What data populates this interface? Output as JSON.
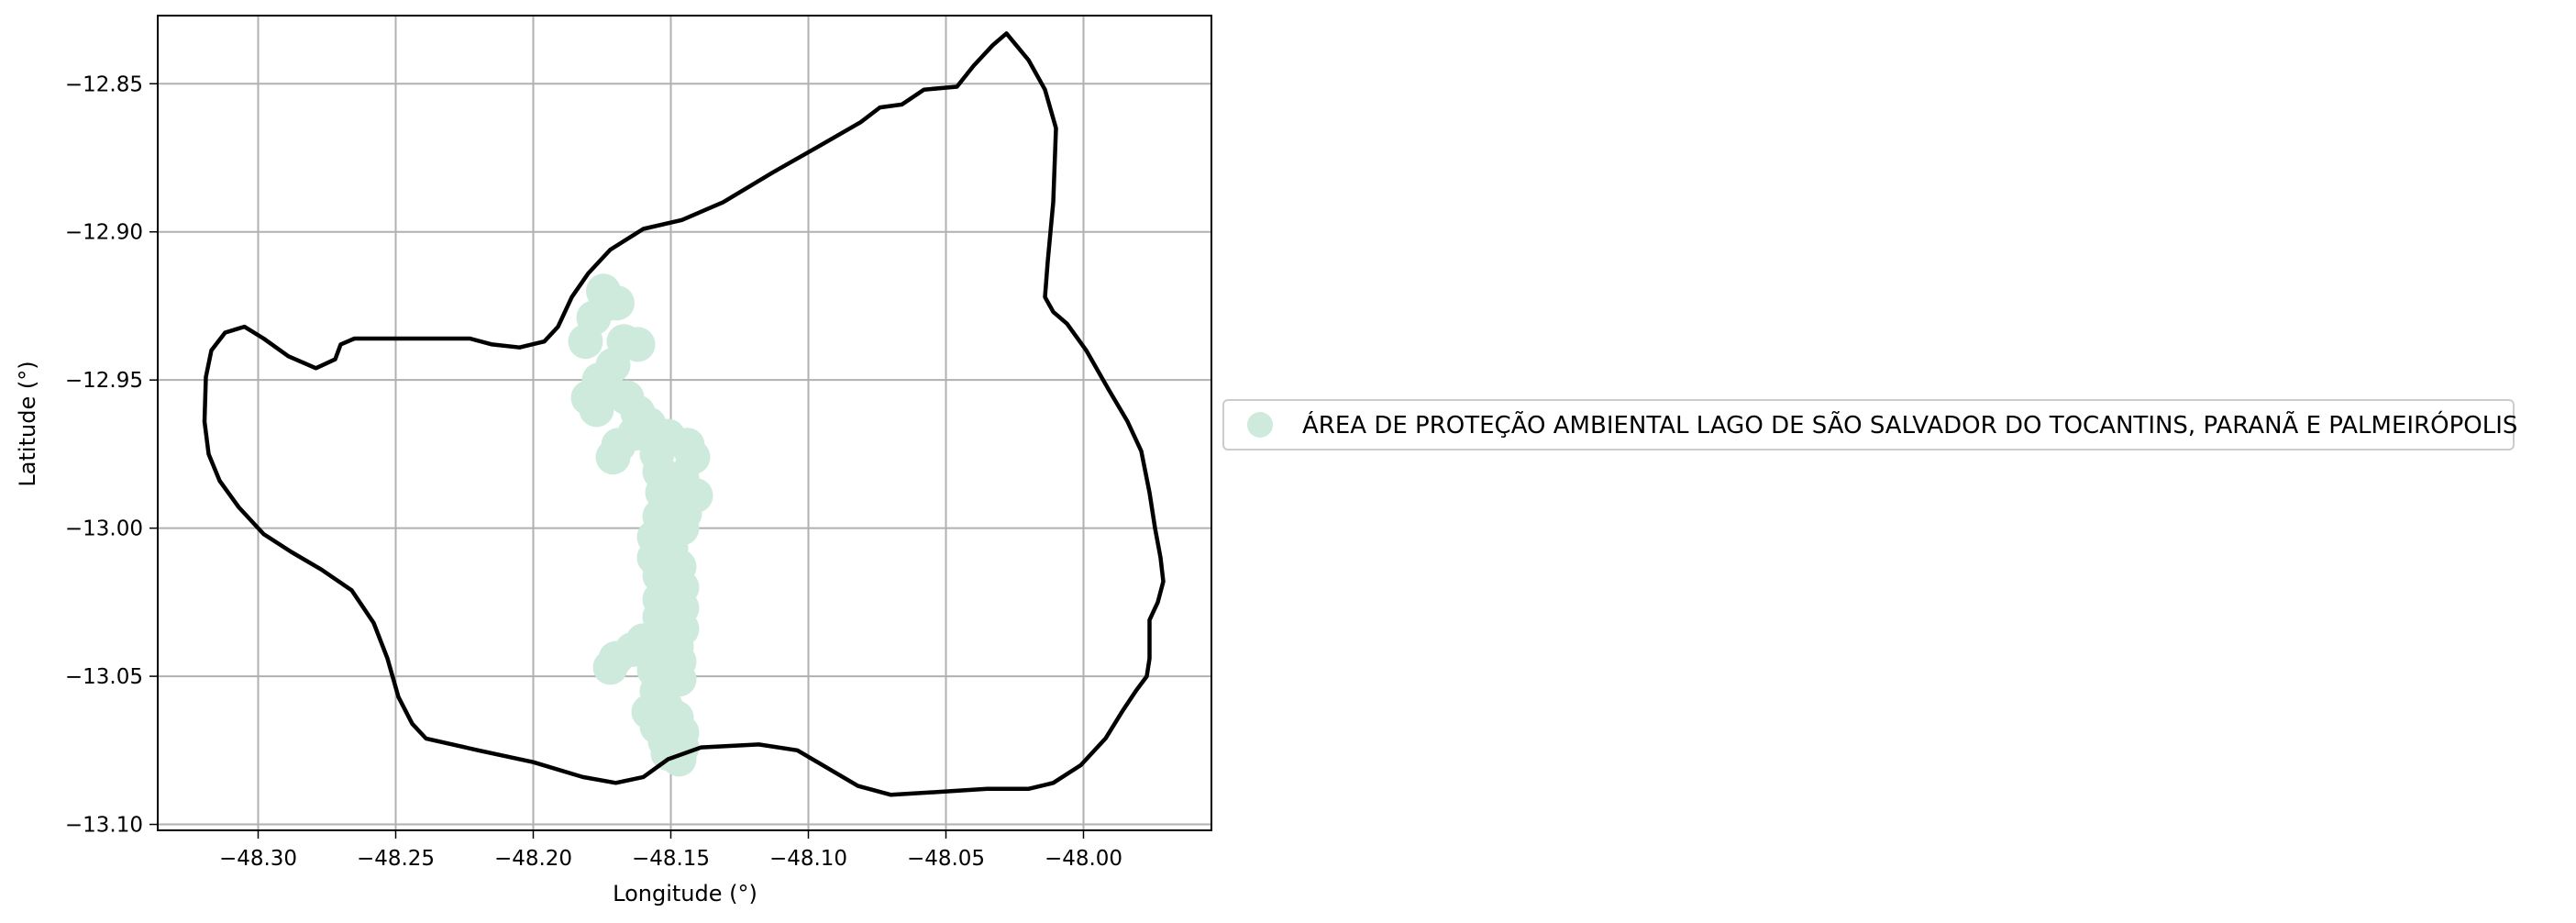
{
  "chart_data": {
    "type": "map",
    "xlabel": "Longitude (°)",
    "ylabel": "Latitude (°)",
    "xlim": [
      -48.3365,
      -47.9535
    ],
    "ylim": [
      -13.102,
      -12.827
    ],
    "x_ticks": [
      -48.3,
      -48.25,
      -48.2,
      -48.15,
      -48.1,
      -48.05,
      -48.0
    ],
    "x_tick_labels": [
      "−48.30",
      "−48.25",
      "−48.20",
      "−48.15",
      "−48.10",
      "−48.05",
      "−48.00"
    ],
    "y_ticks": [
      -12.85,
      -12.9,
      -12.95,
      -13.0,
      -13.05,
      -13.1
    ],
    "y_tick_labels": [
      "−12.85",
      "−12.90",
      "−12.95",
      "−13.00",
      "−13.05",
      "−13.10"
    ],
    "grid": true,
    "legend_position": "right",
    "colors": {
      "boundary": "#000000",
      "protected_area": "#cdeadc",
      "grid": "#b0b0b0"
    },
    "boundary": [
      [
        -48.3195,
        -12.964
      ],
      [
        -48.318,
        -12.975
      ],
      [
        -48.314,
        -12.984
      ],
      [
        -48.307,
        -12.993
      ],
      [
        -48.298,
        -13.002
      ],
      [
        -48.288,
        -13.008
      ],
      [
        -48.277,
        -13.014
      ],
      [
        -48.266,
        -13.021
      ],
      [
        -48.258,
        -13.032
      ],
      [
        -48.253,
        -13.044
      ],
      [
        -48.249,
        -13.057
      ],
      [
        -48.244,
        -13.066
      ],
      [
        -48.239,
        -13.071
      ],
      [
        -48.22,
        -13.075
      ],
      [
        -48.2,
        -13.079
      ],
      [
        -48.182,
        -13.084
      ],
      [
        -48.17,
        -13.086
      ],
      [
        -48.16,
        -13.084
      ],
      [
        -48.151,
        -13.078
      ],
      [
        -48.139,
        -13.074
      ],
      [
        -48.118,
        -13.073
      ],
      [
        -48.104,
        -13.075
      ],
      [
        -48.093,
        -13.081
      ],
      [
        -48.082,
        -13.087
      ],
      [
        -48.07,
        -13.09
      ],
      [
        -48.052,
        -13.089
      ],
      [
        -48.035,
        -13.088
      ],
      [
        -48.02,
        -13.088
      ],
      [
        -48.011,
        -13.086
      ],
      [
        -48.001,
        -13.08
      ],
      [
        -47.992,
        -13.071
      ],
      [
        -47.986,
        -13.062
      ],
      [
        -47.981,
        -13.055
      ],
      [
        -47.977,
        -13.05
      ],
      [
        -47.976,
        -13.044
      ],
      [
        -47.976,
        -13.031
      ],
      [
        -47.973,
        -13.025
      ],
      [
        -47.971,
        -13.018
      ],
      [
        -47.972,
        -13.01
      ],
      [
        -47.974,
        -13.0
      ],
      [
        -47.976,
        -12.988
      ],
      [
        -47.979,
        -12.974
      ],
      [
        -47.984,
        -12.964
      ],
      [
        -47.991,
        -12.953
      ],
      [
        -47.999,
        -12.94
      ],
      [
        -48.006,
        -12.931
      ],
      [
        -48.011,
        -12.927
      ],
      [
        -48.014,
        -12.922
      ],
      [
        -48.013,
        -12.91
      ],
      [
        -48.011,
        -12.89
      ],
      [
        -48.01,
        -12.865
      ],
      [
        -48.014,
        -12.852
      ],
      [
        -48.02,
        -12.842
      ],
      [
        -48.028,
        -12.833
      ],
      [
        -48.033,
        -12.837
      ],
      [
        -48.04,
        -12.844
      ],
      [
        -48.046,
        -12.851
      ],
      [
        -48.058,
        -12.852
      ],
      [
        -48.066,
        -12.857
      ],
      [
        -48.074,
        -12.858
      ],
      [
        -48.081,
        -12.863
      ],
      [
        -48.096,
        -12.871
      ],
      [
        -48.113,
        -12.88
      ],
      [
        -48.131,
        -12.89
      ],
      [
        -48.146,
        -12.896
      ],
      [
        -48.16,
        -12.899
      ],
      [
        -48.172,
        -12.906
      ],
      [
        -48.18,
        -12.914
      ],
      [
        -48.186,
        -12.922
      ],
      [
        -48.191,
        -12.932
      ],
      [
        -48.196,
        -12.937
      ],
      [
        -48.205,
        -12.939
      ],
      [
        -48.215,
        -12.938
      ],
      [
        -48.223,
        -12.936
      ],
      [
        -48.24,
        -12.936
      ],
      [
        -48.255,
        -12.936
      ],
      [
        -48.265,
        -12.936
      ],
      [
        -48.27,
        -12.938
      ],
      [
        -48.272,
        -12.943
      ],
      [
        -48.279,
        -12.946
      ],
      [
        -48.289,
        -12.942
      ],
      [
        -48.298,
        -12.936
      ],
      [
        -48.305,
        -12.932
      ],
      [
        -48.312,
        -12.934
      ],
      [
        -48.317,
        -12.94
      ],
      [
        -48.319,
        -12.949
      ],
      [
        -48.3195,
        -12.964
      ]
    ],
    "series": [
      {
        "name": "ÁREA DE PROTEÇÃO AMBIENTAL LAGO DE SÃO SALVADOR DO TOCANTINS, PARANÃ E PALMEIRÓPOLIS",
        "points": [
          [
            -48.1745,
            -12.92
          ],
          [
            -48.1715,
            -12.924
          ],
          [
            -48.1695,
            -12.924
          ],
          [
            -48.178,
            -12.929
          ],
          [
            -48.181,
            -12.937
          ],
          [
            -48.167,
            -12.937
          ],
          [
            -48.162,
            -12.938
          ],
          [
            -48.171,
            -12.945
          ],
          [
            -48.176,
            -12.95
          ],
          [
            -48.173,
            -12.953
          ],
          [
            -48.18,
            -12.956
          ],
          [
            -48.166,
            -12.956
          ],
          [
            -48.177,
            -12.96
          ],
          [
            -48.162,
            -12.961
          ],
          [
            -48.158,
            -12.965
          ],
          [
            -48.163,
            -12.968
          ],
          [
            -48.169,
            -12.972
          ],
          [
            -48.151,
            -12.969
          ],
          [
            -48.171,
            -12.976
          ],
          [
            -48.144,
            -12.972
          ],
          [
            -48.142,
            -12.976
          ],
          [
            -48.155,
            -12.975
          ],
          [
            -48.154,
            -12.981
          ],
          [
            -48.146,
            -12.983
          ],
          [
            -48.141,
            -12.989
          ],
          [
            -48.153,
            -12.988
          ],
          [
            -48.145,
            -12.995
          ],
          [
            -48.154,
            -12.996
          ],
          [
            -48.146,
            -13.0
          ],
          [
            -48.156,
            -13.003
          ],
          [
            -48.15,
            -13.007
          ],
          [
            -48.156,
            -13.01
          ],
          [
            -48.147,
            -13.013
          ],
          [
            -48.154,
            -13.016
          ],
          [
            -48.146,
            -13.02
          ],
          [
            -48.154,
            -13.024
          ],
          [
            -48.146,
            -13.027
          ],
          [
            -48.154,
            -13.03
          ],
          [
            -48.146,
            -13.034
          ],
          [
            -48.153,
            -13.037
          ],
          [
            -48.16,
            -13.038
          ],
          [
            -48.148,
            -13.04
          ],
          [
            -48.164,
            -13.041
          ],
          [
            -48.156,
            -13.043
          ],
          [
            -48.17,
            -13.044
          ],
          [
            -48.172,
            -13.047
          ],
          [
            -48.147,
            -13.045
          ],
          [
            -48.156,
            -13.048
          ],
          [
            -48.147,
            -13.051
          ],
          [
            -48.155,
            -13.055
          ],
          [
            -48.152,
            -13.06
          ],
          [
            -48.158,
            -13.062
          ],
          [
            -48.148,
            -13.064
          ],
          [
            -48.155,
            -13.067
          ],
          [
            -48.146,
            -13.069
          ],
          [
            -48.152,
            -13.072
          ],
          [
            -48.146,
            -13.074
          ],
          [
            -48.151,
            -13.076
          ],
          [
            -48.147,
            -13.078
          ]
        ]
      }
    ]
  }
}
